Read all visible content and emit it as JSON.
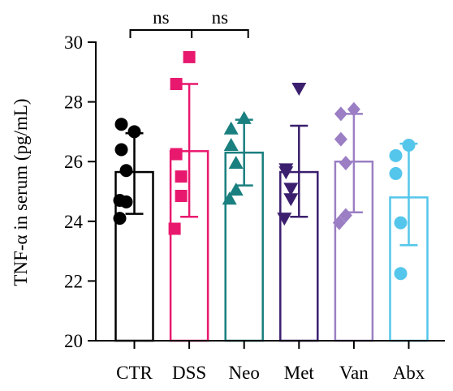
{
  "chart_data": {
    "type": "bar",
    "ylabel": "TNF-α in serum (pg/mL)",
    "ylim": [
      20,
      30
    ],
    "yticks": [
      20,
      22,
      24,
      26,
      28,
      30
    ],
    "grid": false,
    "error_bars": "SD",
    "categories": [
      "CTR",
      "DSS",
      "Neo",
      "Met",
      "Van",
      "Abx"
    ],
    "groups": [
      {
        "name": "CTR",
        "color": "#000000",
        "marker": "circle",
        "mean": 25.65,
        "err_low": 24.25,
        "err_high": 26.95,
        "points": [
          27.0,
          27.25,
          26.4,
          25.7,
          24.65,
          24.7,
          24.1
        ]
      },
      {
        "name": "DSS",
        "color": "#E8186E",
        "marker": "square",
        "mean": 26.35,
        "err_low": 24.15,
        "err_high": 28.6,
        "points": [
          29.5,
          28.6,
          26.25,
          25.5,
          24.85,
          23.75
        ]
      },
      {
        "name": "Neo",
        "color": "#1A7F7F",
        "marker": "triangle-up",
        "mean": 26.3,
        "err_low": 25.2,
        "err_high": 27.4,
        "points": [
          27.45,
          27.1,
          26.55,
          25.95,
          25.05,
          24.75
        ]
      },
      {
        "name": "Met",
        "color": "#3B1F6E",
        "marker": "triangle-down",
        "mean": 25.65,
        "err_low": 24.15,
        "err_high": 27.2,
        "points": [
          28.45,
          25.75,
          25.65,
          25.1,
          24.75,
          24.1
        ]
      },
      {
        "name": "Van",
        "color": "#9B7EC4",
        "marker": "diamond",
        "mean": 26.0,
        "err_low": 24.3,
        "err_high": 27.6,
        "points": [
          27.75,
          27.6,
          26.75,
          25.95,
          24.2,
          23.95
        ]
      },
      {
        "name": "Abx",
        "color": "#55C6EB",
        "marker": "circle",
        "mean": 24.8,
        "err_low": 23.2,
        "err_high": 26.6,
        "points": [
          26.55,
          26.2,
          25.6,
          23.95,
          22.25
        ]
      }
    ],
    "annotations": [
      {
        "label": "ns",
        "from": "CTR",
        "to": "DSS"
      },
      {
        "label": "ns",
        "from": "DSS",
        "to": "Neo"
      }
    ]
  }
}
